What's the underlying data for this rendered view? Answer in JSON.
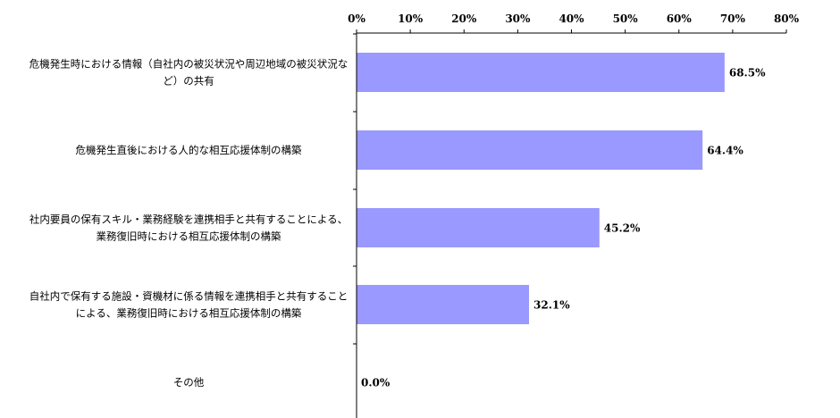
{
  "chart_data": {
    "type": "bar",
    "orientation": "horizontal",
    "categories": [
      [
        "危機発生時における情報（自社内の被災状況や周辺地域の被災状況な",
        "ど）の共有"
      ],
      [
        "危機発生直後における人的な相互応援体制の構築"
      ],
      [
        "社内要員の保有スキル・業務経験を連携相手と共有することによる、",
        "業務復旧時における相互応援体制の構築"
      ],
      [
        "自社内で保有する施設・資機材に係る情報を連携相手と共有すること",
        "による、業務復旧時における相互応援体制の構築"
      ],
      [
        "その他"
      ]
    ],
    "values": [
      68.5,
      64.4,
      45.2,
      32.1,
      0.0
    ],
    "value_labels": [
      "68.5%",
      "64.4%",
      "45.2%",
      "32.1%",
      "0.0%"
    ],
    "xlim": [
      0,
      80
    ],
    "xticks": [
      0,
      10,
      20,
      30,
      40,
      50,
      60,
      70,
      80
    ],
    "xtick_labels": [
      "0%",
      "10%",
      "20%",
      "30%",
      "40%",
      "50%",
      "60%",
      "70%",
      "80%"
    ],
    "x_axis_position": "top",
    "grid": false,
    "legend": "none",
    "bar_color": "#9999ff",
    "axis_color": "#000000"
  }
}
